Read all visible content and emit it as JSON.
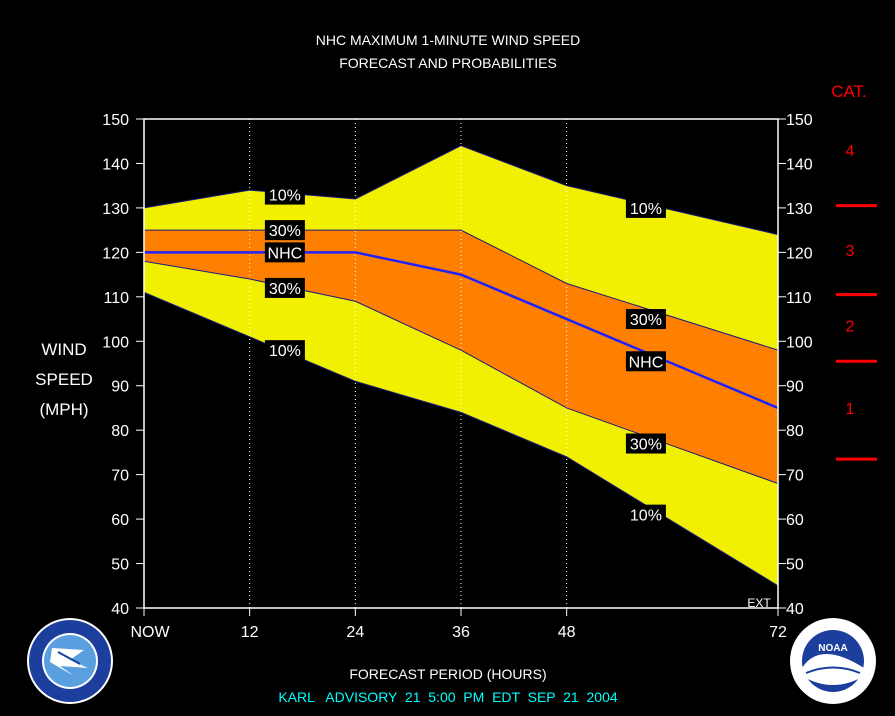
{
  "title": {
    "line1": "NHC MAXIMUM 1-MINUTE WIND SPEED",
    "line2": "FORECAST AND PROBABILITIES"
  },
  "ylabel": [
    "WIND",
    "SPEED",
    "(MPH)"
  ],
  "xlabel": "FORECAST PERIOD (HOURS)",
  "advisory": "KARL   ADVISORY  21  5:00  PM  EDT  SEP  21  2004",
  "ext_label": "EXT",
  "category": {
    "title": "CAT.",
    "labels": [
      {
        "text": "4",
        "mph": 143
      },
      {
        "text": "3",
        "mph": 120.5
      },
      {
        "text": "2",
        "mph": 103.5
      },
      {
        "text": "1",
        "mph": 85
      }
    ],
    "boundaries_mph": [
      130.5,
      110.5,
      95.5,
      73.5
    ]
  },
  "colors": {
    "background": "#000000",
    "band_10": "#f0f000",
    "band_30": "#ff8000",
    "nhc_line": "#2020ff",
    "category": "#ff0000",
    "advisory_text": "#00ffff"
  },
  "chart_data": {
    "type": "area",
    "x_ticks": [
      {
        "value": 0,
        "label": "NOW"
      },
      {
        "value": 12,
        "label": "12"
      },
      {
        "value": 24,
        "label": "24"
      },
      {
        "value": 36,
        "label": "36"
      },
      {
        "value": 48,
        "label": "48"
      },
      {
        "value": 72,
        "label": "72"
      }
    ],
    "xlim": [
      0,
      72
    ],
    "ylim": [
      40,
      150
    ],
    "y_ticks": [
      40,
      50,
      60,
      70,
      80,
      90,
      100,
      110,
      120,
      130,
      140,
      150
    ],
    "x": [
      0,
      12,
      24,
      36,
      48,
      72
    ],
    "series": [
      {
        "name": "10%",
        "role": "upper_10",
        "values": [
          130,
          134,
          132,
          144,
          135,
          124
        ]
      },
      {
        "name": "30%",
        "role": "upper_30",
        "values": [
          125,
          125,
          125,
          125,
          113,
          98
        ]
      },
      {
        "name": "NHC",
        "role": "nhc",
        "values": [
          120,
          120,
          120,
          115,
          105,
          85
        ]
      },
      {
        "name": "30%",
        "role": "lower_30",
        "values": [
          118,
          114,
          109,
          98,
          85,
          68
        ]
      },
      {
        "name": "10%",
        "role": "lower_10",
        "values": [
          111,
          101,
          91,
          84,
          74,
          45
        ]
      }
    ],
    "series_labels": [
      {
        "text": "10%",
        "x": 16,
        "y": 133
      },
      {
        "text": "30%",
        "x": 16,
        "y": 125
      },
      {
        "text": "NHC",
        "x": 16,
        "y": 120
      },
      {
        "text": "30%",
        "x": 16,
        "y": 112
      },
      {
        "text": "10%",
        "x": 16,
        "y": 98
      },
      {
        "text": "10%",
        "x": 57,
        "y": 130
      },
      {
        "text": "30%",
        "x": 57,
        "y": 105
      },
      {
        "text": "NHC",
        "x": 57,
        "y": 95.5
      },
      {
        "text": "30%",
        "x": 57,
        "y": 77
      },
      {
        "text": "10%",
        "x": 57,
        "y": 61
      }
    ]
  }
}
